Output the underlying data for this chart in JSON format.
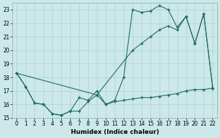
{
  "xlabel": "Humidex (Indice chaleur)",
  "bg_color": "#cce8e8",
  "line_color": "#1a6b5a",
  "grid_color": "#b0d0d0",
  "xlim": [
    -0.5,
    22.5
  ],
  "ylim": [
    15,
    23.5
  ],
  "yticks": [
    15,
    16,
    17,
    18,
    19,
    20,
    21,
    22,
    23
  ],
  "xticks": [
    0,
    1,
    2,
    3,
    4,
    5,
    6,
    7,
    8,
    9,
    10,
    11,
    12,
    13,
    14,
    15,
    16,
    17,
    18,
    19,
    20,
    21,
    22
  ],
  "line1_x": [
    0,
    1,
    2,
    3,
    4,
    5,
    6,
    7,
    8,
    9,
    10,
    11,
    12,
    13,
    14,
    15,
    16,
    17,
    18,
    19,
    20,
    21,
    22
  ],
  "line1_y": [
    18.3,
    17.3,
    16.1,
    16.0,
    15.3,
    15.2,
    15.5,
    15.5,
    16.2,
    16.7,
    16.0,
    16.2,
    16.3,
    16.4,
    16.5,
    16.5,
    16.6,
    16.7,
    16.8,
    17.0,
    17.1,
    17.1,
    17.2
  ],
  "line2_x": [
    0,
    1,
    2,
    3,
    4,
    5,
    6,
    7,
    8,
    9,
    10,
    11,
    12,
    13,
    14,
    15,
    16,
    17,
    18,
    19,
    20,
    21,
    22
  ],
  "line2_y": [
    18.3,
    17.3,
    16.1,
    16.0,
    15.3,
    15.2,
    15.5,
    16.5,
    16.3,
    17.0,
    16.0,
    16.3,
    18.0,
    23.0,
    22.8,
    22.9,
    23.3,
    23.0,
    21.7,
    22.5,
    20.5,
    22.7,
    17.2
  ],
  "line3_x": [
    0,
    9,
    13,
    14,
    15,
    16,
    17,
    18,
    19,
    20,
    21,
    22
  ],
  "line3_y": [
    18.3,
    16.7,
    20.0,
    20.5,
    21.0,
    21.5,
    21.8,
    21.5,
    22.5,
    20.5,
    22.7,
    17.2
  ]
}
